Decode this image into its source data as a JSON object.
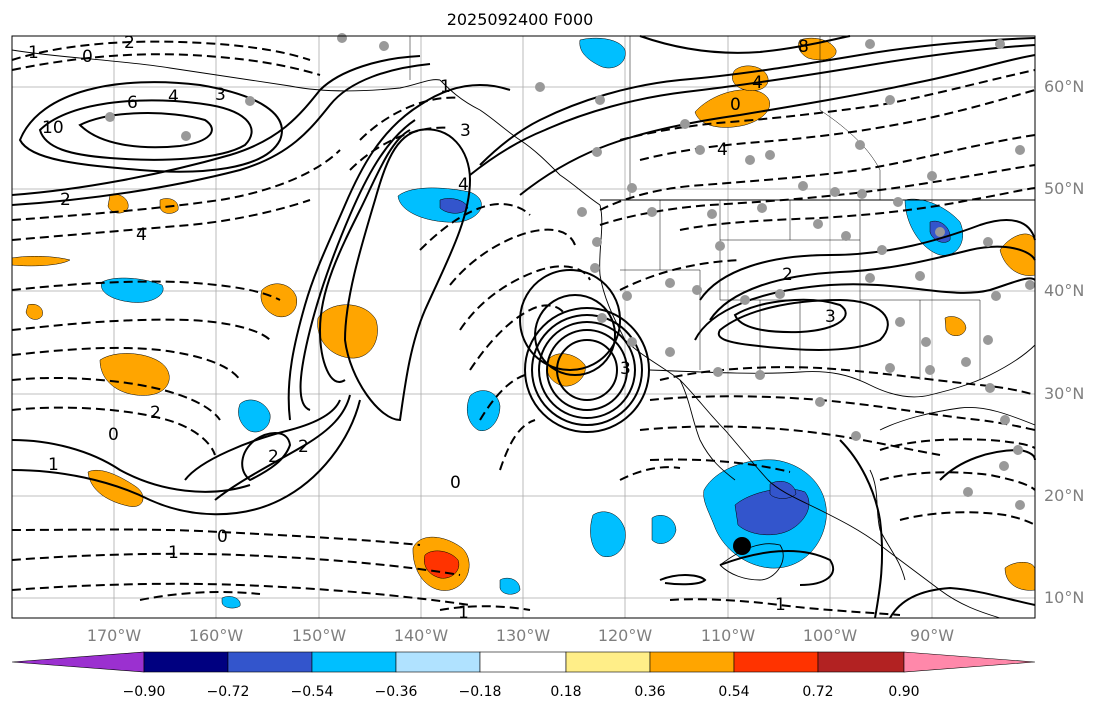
{
  "title": "2025092400 F000",
  "lat_labels": [
    "60°N",
    "50°N",
    "40°N",
    "30°N",
    "20°N",
    "10°N"
  ],
  "lon_labels": [
    "170°W",
    "160°W",
    "150°W",
    "140°W",
    "130°W",
    "120°W",
    "110°W",
    "100°W",
    "90°W"
  ],
  "colorbar": {
    "ticks": [
      "−0.90",
      "−0.72",
      "−0.54",
      "−0.36",
      "−0.18",
      "0.18",
      "0.36",
      "0.54",
      "0.72",
      "0.90"
    ],
    "colors": [
      "#9b30d0",
      "#000080",
      "#3355cc",
      "#00bfff",
      "#b0e2ff",
      "#ffffff",
      "#ffee88",
      "#ffa500",
      "#ff3300",
      "#b22222",
      "#ff88aa"
    ]
  },
  "contour_labels": [
    "10",
    "6",
    "4",
    "3",
    "2",
    "1",
    "0",
    "8",
    "4",
    "2",
    "1",
    "0",
    "4",
    "3",
    "2",
    "1",
    "0",
    "4",
    "3",
    "2",
    "1",
    "0",
    "3",
    "2",
    "1",
    "0",
    "4",
    "2",
    "1"
  ],
  "colors": {
    "warm": "#ffa500",
    "cold": "#00bfff",
    "dark_cold": "#3355cc",
    "hot": "#ff3300",
    "station": "#999999"
  }
}
